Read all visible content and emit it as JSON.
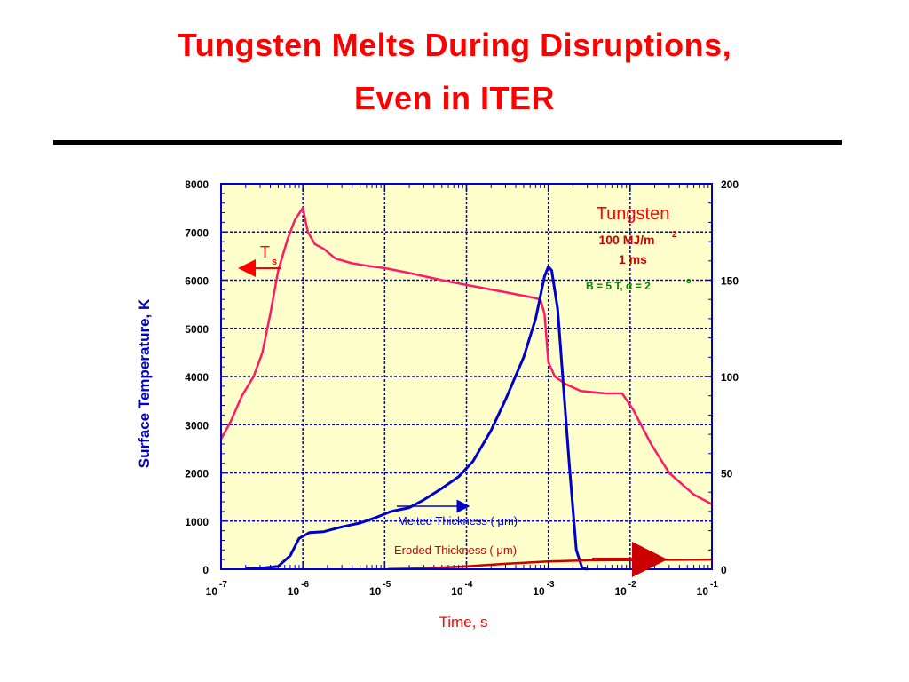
{
  "title_line1": "Tungsten Melts During Disruptions,",
  "title_line2": "Even in ITER",
  "chart_data": {
    "type": "line",
    "title": "Tungsten Melts During Disruptions, Even in ITER",
    "xlabel": "Time,  s",
    "ylabel": "Surface Temperature, K",
    "x_scale": "log",
    "xlim": [
      1e-07,
      0.1
    ],
    "ylim": [
      0,
      8000
    ],
    "y2lim": [
      0,
      200
    ],
    "x_tick_labels": [
      {
        "base": "10",
        "exp": "-7"
      },
      {
        "base": "10",
        "exp": "-6"
      },
      {
        "base": "10",
        "exp": "-5"
      },
      {
        "base": "10",
        "exp": "-4"
      },
      {
        "base": "10",
        "exp": "-3"
      },
      {
        "base": "10",
        "exp": "-2"
      },
      {
        "base": "10",
        "exp": "-1"
      }
    ],
    "y_ticks": [
      "0",
      "1000",
      "2000",
      "3000",
      "4000",
      "5000",
      "6000",
      "7000",
      "8000"
    ],
    "y2_ticks": [
      "0",
      "50",
      "100",
      "150",
      "200"
    ],
    "grid": true,
    "background": "#ffffcc",
    "annotations": {
      "material": "Tungsten",
      "energy": "100 MJ/m",
      "energy_sup": "2",
      "duration": "1 ms",
      "field": "B = 5 T,   α = 2",
      "field_sup": "o",
      "ts": "T",
      "ts_sub": "s",
      "melted": "Melted Thickness (    μm)",
      "eroded": "Eroded Thickness (    μm)"
    },
    "series": [
      {
        "name": "T",
        "axis": "left",
        "color": "#ff1a66",
        "points": [
          [
            1e-07,
            2700
          ],
          [
            1.3e-07,
            3050
          ],
          [
            1.8e-07,
            3600
          ],
          [
            2.5e-07,
            4000
          ],
          [
            3.2e-07,
            4500
          ],
          [
            4e-07,
            5300
          ],
          [
            5e-07,
            6200
          ],
          [
            6.5e-07,
            6850
          ],
          [
            8e-07,
            7250
          ],
          [
            1e-06,
            7500
          ],
          [
            1.15e-06,
            7000
          ],
          [
            1.4e-06,
            6750
          ],
          [
            1.8e-06,
            6650
          ],
          [
            2.5e-06,
            6450
          ],
          [
            4e-06,
            6350
          ],
          [
            6e-06,
            6300
          ],
          [
            1e-05,
            6250
          ],
          [
            2e-05,
            6150
          ],
          [
            5e-05,
            6000
          ],
          [
            0.0001,
            5900
          ],
          [
            0.0003,
            5750
          ],
          [
            0.0006,
            5650
          ],
          [
            0.0008,
            5600
          ],
          [
            0.0009,
            5300
          ],
          [
            0.001,
            4300
          ],
          [
            0.0012,
            4000
          ],
          [
            0.0016,
            3850
          ],
          [
            0.0025,
            3700
          ],
          [
            0.005,
            3650
          ],
          [
            0.008,
            3650
          ],
          [
            0.011,
            3300
          ],
          [
            0.018,
            2600
          ],
          [
            0.03,
            2000
          ],
          [
            0.06,
            1550
          ],
          [
            0.1,
            1350
          ]
        ]
      },
      {
        "name": "Melted Thickness (μm)",
        "axis": "right",
        "color": "#0000cc",
        "points": [
          [
            2e-07,
            0.3
          ],
          [
            3e-07,
            0.5
          ],
          [
            5e-07,
            1.5
          ],
          [
            7e-07,
            7
          ],
          [
            9e-07,
            16
          ],
          [
            1.2e-06,
            19
          ],
          [
            1.8e-06,
            19.5
          ],
          [
            3e-06,
            22
          ],
          [
            5e-06,
            24
          ],
          [
            8e-06,
            27
          ],
          [
            1.2e-05,
            30
          ],
          [
            2e-05,
            32
          ],
          [
            3e-05,
            36
          ],
          [
            5e-05,
            42
          ],
          [
            8e-05,
            48
          ],
          [
            0.00012,
            56
          ],
          [
            0.0002,
            72
          ],
          [
            0.0003,
            88
          ],
          [
            0.0005,
            110
          ],
          [
            0.0007,
            130
          ],
          [
            0.0009,
            152
          ],
          [
            0.001,
            157
          ],
          [
            0.0011,
            155
          ],
          [
            0.0013,
            135
          ],
          [
            0.0015,
            100
          ],
          [
            0.0018,
            55
          ],
          [
            0.0022,
            10
          ],
          [
            0.0026,
            0.5
          ],
          [
            0.003,
            0
          ]
        ]
      },
      {
        "name": "Eroded Thickness (μm)",
        "axis": "right",
        "color": "#cc0000",
        "points": [
          [
            1.1e-05,
            0.1
          ],
          [
            3e-05,
            0.4
          ],
          [
            0.0001,
            1.5
          ],
          [
            0.0003,
            2.8
          ],
          [
            0.001,
            4
          ],
          [
            0.003,
            4.6
          ],
          [
            0.01,
            4.8
          ],
          [
            0.03,
            4.9
          ],
          [
            0.1,
            5
          ]
        ]
      }
    ]
  }
}
